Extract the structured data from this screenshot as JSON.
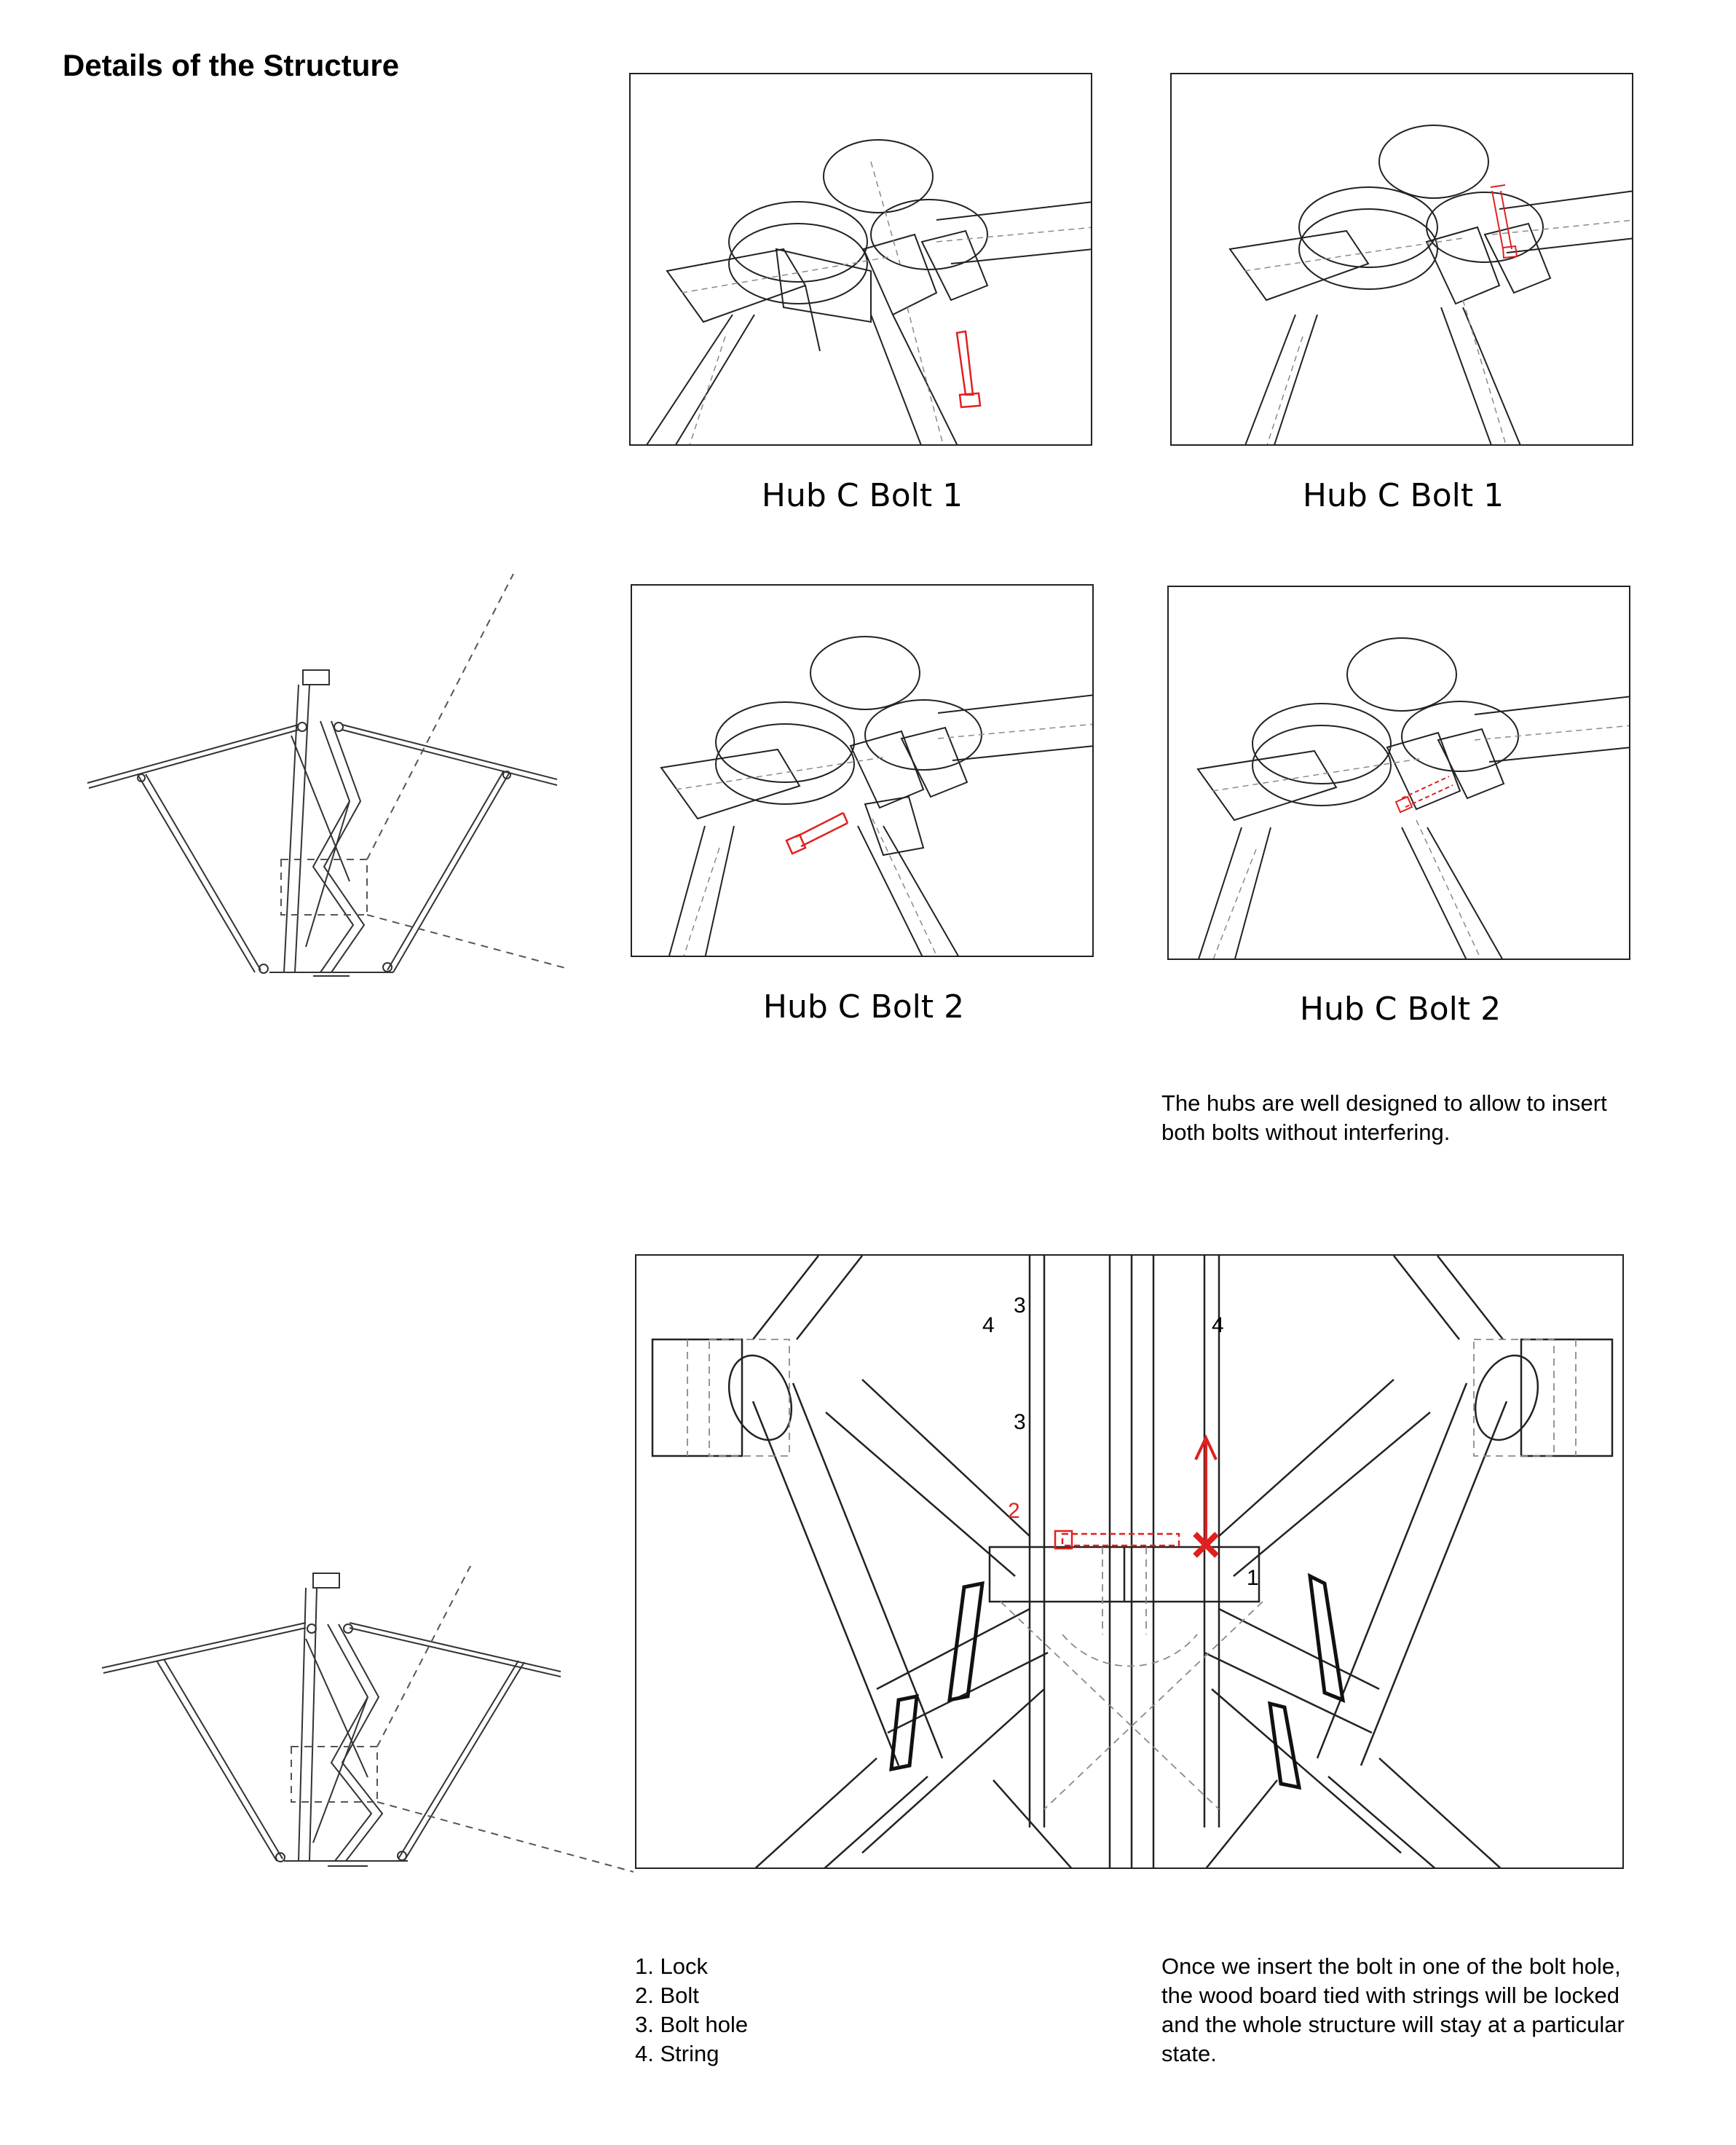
{
  "page": {
    "title": "Details of the Structure"
  },
  "panels": [
    {
      "id": "p1",
      "caption": "Hub C   Bolt 1"
    },
    {
      "id": "p2",
      "caption": "Hub C   Bolt 1"
    },
    {
      "id": "p3",
      "caption": "Hub C   Bolt 2"
    },
    {
      "id": "p4",
      "caption": "Hub C   Bolt 2"
    }
  ],
  "notes": {
    "hubs": "The hubs are well designed to allow to insert both bolts without interfering.",
    "lock": "Once we insert the bolt in one of the bolt hole, the wood board tied with strings will be locked and the whole structure will stay at a particular state."
  },
  "legend": [
    "1. Lock",
    "2. Bolt",
    "3. Bolt hole",
    "4. String"
  ],
  "detail_labels": {
    "lock": "1",
    "bolt": "2",
    "bolt_hole_a": "3",
    "bolt_hole_b": "3",
    "string_left": "4",
    "string_right": "4"
  },
  "colors": {
    "line": "#222222",
    "hidden": "#8a8a8a",
    "accent": "#e02020"
  }
}
